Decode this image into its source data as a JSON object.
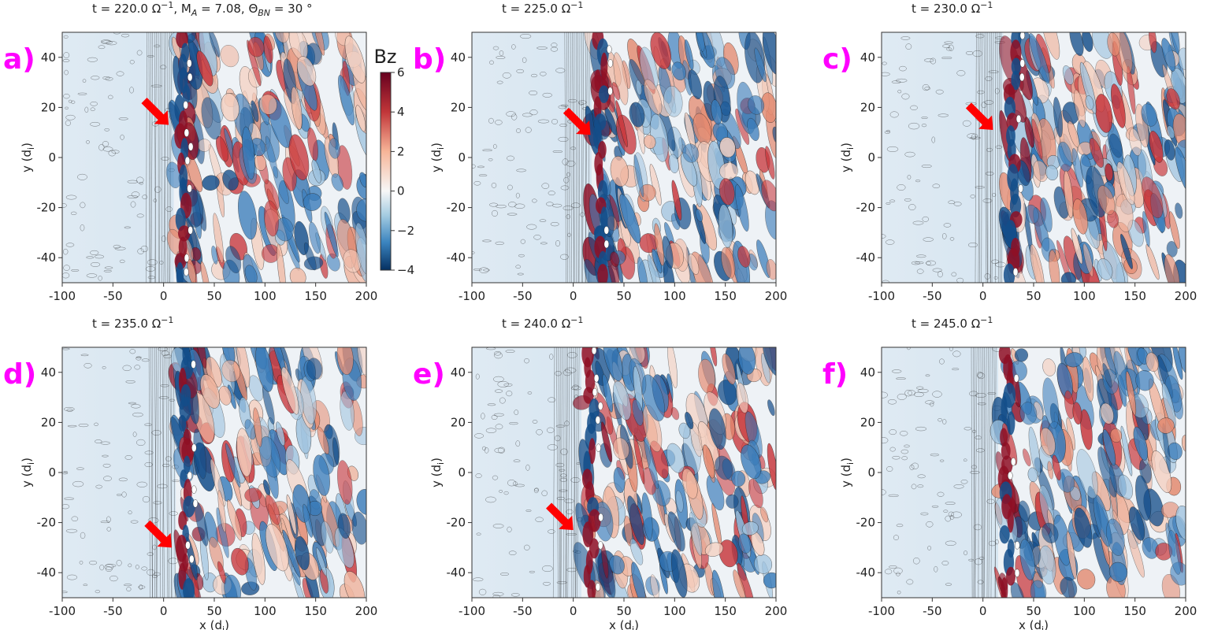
{
  "chart_data": {
    "type": "heatmap",
    "colorbar": {
      "label": "Bz",
      "colormap": "RdBu_r",
      "range": [
        -4,
        6
      ],
      "ticks": [
        6,
        4,
        2,
        0,
        -2,
        -4
      ],
      "tick_labels": [
        "6",
        "4",
        "2",
        "0",
        "−2",
        "−4"
      ]
    },
    "xlabel": "x (d",
    "xlabel_sub": "i",
    "xlabel_end": ")",
    "ylabel": "y (d",
    "ylabel_sub": "i",
    "ylabel_end": ")",
    "xlim": [
      -100,
      200
    ],
    "ylim": [
      -50,
      50
    ],
    "x_ticks": [
      -100,
      -50,
      0,
      50,
      100,
      150,
      200
    ],
    "y_ticks": [
      40,
      20,
      0,
      -20,
      -40
    ],
    "colors": {
      "upstream": "#d5e5f1",
      "red": "#c8353a",
      "darkred": "#8e0f25",
      "blue": "#3a7cba",
      "darkblue": "#134d8a",
      "contour": "#1a1a1a",
      "arrow": "#ff0000",
      "panel_tag": "#ff00ff"
    },
    "panels": [
      {
        "tag": "a)",
        "title": "t = 220.0 Ω⁻¹, Mₐ = 7.08, Θᴮɴ = 30 °",
        "title_parts": [
          "t = 220.0 Ω",
          "−1",
          ", M",
          "A",
          " = 7.08, Θ",
          "BN",
          " = 30 °"
        ],
        "shock_x": 10,
        "arrow_tip": [
          5,
          13
        ],
        "show_ylabel": true,
        "show_xlabel": false,
        "show_colorbar": true
      },
      {
        "tag": "b)",
        "title_parts": [
          "t = 225.0 Ω",
          "−1"
        ],
        "shock_x": 18,
        "arrow_tip": [
          17,
          9
        ],
        "show_ylabel": true,
        "show_xlabel": false,
        "show_colorbar": false
      },
      {
        "tag": "c)",
        "title_parts": [
          "t = 230.0 Ω",
          "−1"
        ],
        "shock_x": 20,
        "arrow_tip": [
          10,
          11
        ],
        "show_ylabel": true,
        "show_xlabel": false,
        "show_colorbar": false
      },
      {
        "tag": "d)",
        "title_parts": [
          "t = 235.0 Ω",
          "−1"
        ],
        "shock_x": 12,
        "arrow_tip": [
          8,
          -30
        ],
        "show_ylabel": true,
        "show_xlabel": true,
        "show_colorbar": false
      },
      {
        "tag": "e)",
        "title_parts": [
          "t = 240.0 Ω",
          "−1"
        ],
        "shock_x": 8,
        "arrow_tip": [
          0,
          -23
        ],
        "show_ylabel": true,
        "show_xlabel": true,
        "show_colorbar": false
      },
      {
        "tag": "f)",
        "title_parts": [
          "t = 245.0 Ω",
          "−1"
        ],
        "shock_x": 15,
        "arrow_tip": null,
        "show_ylabel": true,
        "show_xlabel": true,
        "show_colorbar": false
      }
    ]
  }
}
